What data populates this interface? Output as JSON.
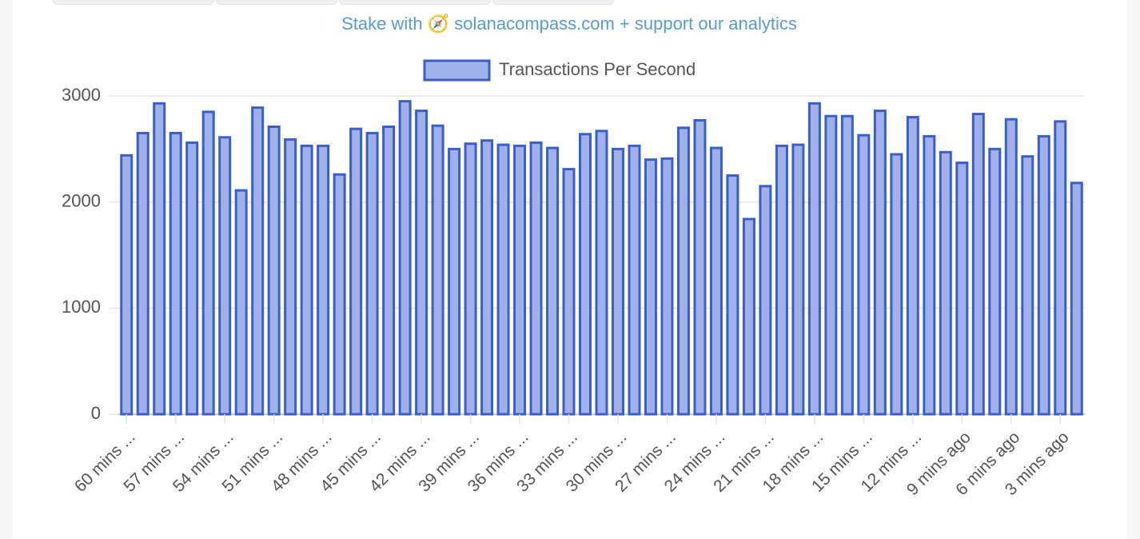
{
  "link_text": "Stake with 🧭 solanacompass.com + support our analytics",
  "chart_data": {
    "type": "bar",
    "categories": [
      "60 mins ...",
      null,
      null,
      "57 mins ...",
      null,
      null,
      "54 mins ...",
      null,
      null,
      "51 mins ...",
      null,
      null,
      "48 mins ...",
      null,
      null,
      "45 mins ...",
      null,
      null,
      "42 mins ...",
      null,
      null,
      "39 mins ...",
      null,
      null,
      "36 mins ...",
      null,
      null,
      "33 mins ...",
      null,
      null,
      "30 mins ...",
      null,
      null,
      "27 mins ...",
      null,
      null,
      "24 mins ...",
      null,
      null,
      "21 mins ...",
      null,
      null,
      "18 mins ...",
      null,
      null,
      "15 mins ...",
      null,
      null,
      "12 mins ...",
      null,
      null,
      "9 mins ago",
      null,
      null,
      "6 mins ago",
      null,
      null,
      "3 mins ago",
      null
    ],
    "series": [
      {
        "name": "Transactions Per Second",
        "color": "#a0b0e8",
        "border_color": "#3a5fcd",
        "values": [
          2440,
          2650,
          2930,
          2650,
          2560,
          2850,
          2610,
          2110,
          2890,
          2710,
          2590,
          2530,
          2530,
          2260,
          2690,
          2650,
          2710,
          2950,
          2860,
          2720,
          2500,
          2550,
          2580,
          2540,
          2530,
          2560,
          2510,
          2310,
          2640,
          2670,
          2500,
          2530,
          2400,
          2410,
          2700,
          2770,
          2510,
          2250,
          1840,
          2150,
          2530,
          2540,
          2930,
          2810,
          2810,
          2630,
          2860,
          2450,
          2800,
          2620,
          2470,
          2370,
          2830,
          2500,
          2780,
          2430,
          2620,
          2760,
          2180
        ]
      }
    ],
    "ylim": [
      0,
      3000
    ],
    "yticks": [
      0,
      1000,
      2000,
      3000
    ],
    "grid": true
  }
}
